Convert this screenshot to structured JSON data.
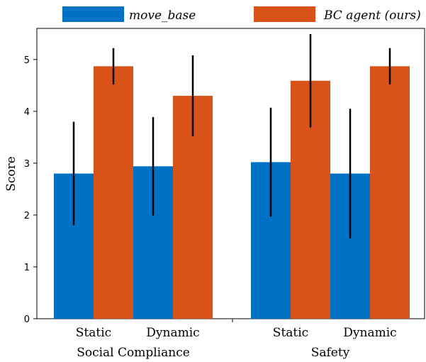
{
  "chart_data": {
    "type": "bar",
    "ylabel": "Score",
    "ylim": [
      0,
      5.6
    ],
    "yticks": [
      0,
      1,
      2,
      3,
      4,
      5
    ],
    "groups": [
      {
        "label": "Social Compliance",
        "categories": [
          "Static",
          "Dynamic"
        ]
      },
      {
        "label": "Safety",
        "categories": [
          "Static",
          "Dynamic"
        ]
      }
    ],
    "series": [
      {
        "name": "move_base",
        "color": "#0072c6",
        "values": [
          2.8,
          2.94,
          3.02,
          2.8
        ],
        "errors": [
          1.0,
          0.95,
          1.05,
          1.25
        ]
      },
      {
        "name": "BC agent (ours)",
        "color": "#d95319",
        "values": [
          4.87,
          4.3,
          4.59,
          4.87
        ],
        "errors": [
          0.35,
          0.78,
          0.9,
          0.35
        ]
      }
    ],
    "legend_position": "top",
    "grid": false
  }
}
